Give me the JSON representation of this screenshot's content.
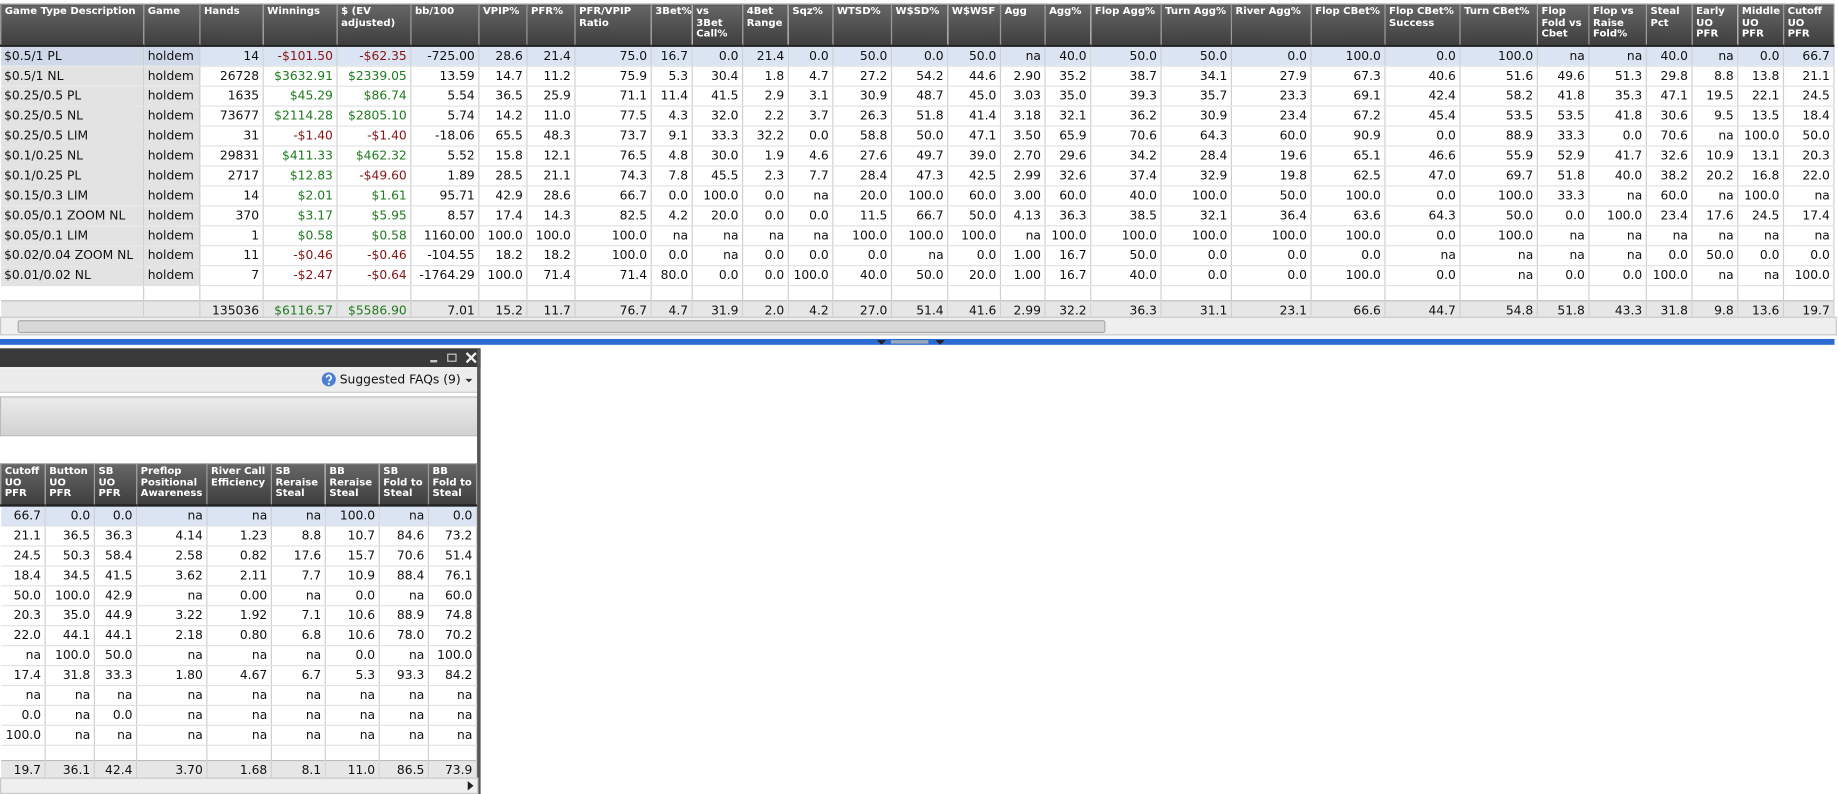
{
  "top_table": {
    "headers": [
      "Game Type Description",
      "Game",
      "Hands",
      "Winnings",
      "$ (EV adjusted)",
      "bb/100",
      "VPIP%",
      "PFR%",
      "PFR/VPIP Ratio",
      "3Bet%",
      "vs 3Bet Call%",
      "4Bet Range",
      "Sqz%",
      "WTSD%",
      "W$SD%",
      "W$WSF",
      "Agg",
      "Agg%",
      "Flop Agg%",
      "Turn Agg%",
      "River Agg%",
      "Flop CBet%",
      "Flop CBet% Success",
      "Turn CBet%",
      "Flop Fold vs Cbet",
      "Flop vs Raise Fold%",
      "Steal Pct",
      "Early UO PFR",
      "Middle UO PFR",
      "Cutoff UO PFR"
    ],
    "rows": [
      [
        "$0.5/1 PL",
        "holdem",
        "14",
        "-$101.50",
        "-$62.35",
        "-725.00",
        "28.6",
        "21.4",
        "75.0",
        "16.7",
        "0.0",
        "21.4",
        "0.0",
        "50.0",
        "0.0",
        "50.0",
        "na",
        "40.0",
        "50.0",
        "50.0",
        "0.0",
        "100.0",
        "0.0",
        "100.0",
        "na",
        "na",
        "40.0",
        "na",
        "0.0",
        "66.7"
      ],
      [
        "$0.5/1 NL",
        "holdem",
        "26728",
        "$3632.91",
        "$2339.05",
        "13.59",
        "14.7",
        "11.2",
        "75.9",
        "5.3",
        "30.4",
        "1.8",
        "4.7",
        "27.2",
        "54.2",
        "44.6",
        "2.90",
        "35.2",
        "38.7",
        "34.1",
        "27.9",
        "67.3",
        "40.6",
        "51.6",
        "49.6",
        "51.3",
        "29.8",
        "8.8",
        "13.8",
        "21.1"
      ],
      [
        "$0.25/0.5 PL",
        "holdem",
        "1635",
        "$45.29",
        "$86.74",
        "5.54",
        "36.5",
        "25.9",
        "71.1",
        "11.4",
        "41.5",
        "2.9",
        "3.1",
        "30.9",
        "48.7",
        "45.0",
        "3.03",
        "35.0",
        "39.3",
        "35.7",
        "23.3",
        "69.1",
        "42.4",
        "58.2",
        "41.8",
        "35.3",
        "47.1",
        "19.5",
        "22.1",
        "24.5"
      ],
      [
        "$0.25/0.5 NL",
        "holdem",
        "73677",
        "$2114.28",
        "$2805.10",
        "5.74",
        "14.2",
        "11.0",
        "77.5",
        "4.3",
        "32.0",
        "2.2",
        "3.7",
        "26.3",
        "51.8",
        "41.4",
        "3.18",
        "32.1",
        "36.2",
        "30.9",
        "23.4",
        "67.2",
        "45.4",
        "53.5",
        "53.5",
        "41.8",
        "30.6",
        "9.5",
        "13.5",
        "18.4"
      ],
      [
        "$0.25/0.5 LIM",
        "holdem",
        "31",
        "-$1.40",
        "-$1.40",
        "-18.06",
        "65.5",
        "48.3",
        "73.7",
        "9.1",
        "33.3",
        "32.2",
        "0.0",
        "58.8",
        "50.0",
        "47.1",
        "3.50",
        "65.9",
        "70.6",
        "64.3",
        "60.0",
        "90.9",
        "0.0",
        "88.9",
        "33.3",
        "0.0",
        "70.6",
        "na",
        "100.0",
        "50.0"
      ],
      [
        "$0.1/0.25 NL",
        "holdem",
        "29831",
        "$411.33",
        "$462.32",
        "5.52",
        "15.8",
        "12.1",
        "76.5",
        "4.8",
        "30.0",
        "1.9",
        "4.6",
        "27.6",
        "49.7",
        "39.0",
        "2.70",
        "29.6",
        "34.2",
        "28.4",
        "19.6",
        "65.1",
        "46.6",
        "55.9",
        "52.9",
        "41.7",
        "32.6",
        "10.9",
        "13.1",
        "20.3"
      ],
      [
        "$0.1/0.25 PL",
        "holdem",
        "2717",
        "$12.83",
        "-$49.60",
        "1.89",
        "28.5",
        "21.1",
        "74.3",
        "7.8",
        "45.5",
        "2.3",
        "7.7",
        "28.4",
        "47.3",
        "42.5",
        "2.99",
        "32.6",
        "37.4",
        "32.9",
        "19.8",
        "62.5",
        "47.0",
        "69.7",
        "51.8",
        "40.0",
        "38.2",
        "20.2",
        "16.8",
        "22.0"
      ],
      [
        "$0.15/0.3 LIM",
        "holdem",
        "14",
        "$2.01",
        "$1.61",
        "95.71",
        "42.9",
        "28.6",
        "66.7",
        "0.0",
        "100.0",
        "0.0",
        "na",
        "20.0",
        "100.0",
        "60.0",
        "3.00",
        "60.0",
        "40.0",
        "100.0",
        "50.0",
        "100.0",
        "0.0",
        "100.0",
        "33.3",
        "na",
        "60.0",
        "na",
        "100.0",
        "na"
      ],
      [
        "$0.05/0.1 ZOOM NL",
        "holdem",
        "370",
        "$3.17",
        "$5.95",
        "8.57",
        "17.4",
        "14.3",
        "82.5",
        "4.2",
        "20.0",
        "0.0",
        "0.0",
        "11.5",
        "66.7",
        "50.0",
        "4.13",
        "36.3",
        "38.5",
        "32.1",
        "36.4",
        "63.6",
        "64.3",
        "50.0",
        "0.0",
        "100.0",
        "23.4",
        "17.6",
        "24.5",
        "17.4"
      ],
      [
        "$0.05/0.1 LIM",
        "holdem",
        "1",
        "$0.58",
        "$0.58",
        "1160.00",
        "100.0",
        "100.0",
        "100.0",
        "na",
        "na",
        "na",
        "na",
        "100.0",
        "100.0",
        "100.0",
        "na",
        "100.0",
        "100.0",
        "100.0",
        "100.0",
        "100.0",
        "0.0",
        "100.0",
        "na",
        "na",
        "na",
        "na",
        "na",
        "na"
      ],
      [
        "$0.02/0.04 ZOOM NL",
        "holdem",
        "11",
        "-$0.46",
        "-$0.46",
        "-104.55",
        "18.2",
        "18.2",
        "100.0",
        "0.0",
        "na",
        "0.0",
        "0.0",
        "0.0",
        "na",
        "0.0",
        "1.00",
        "16.7",
        "50.0",
        "0.0",
        "0.0",
        "0.0",
        "na",
        "na",
        "na",
        "na",
        "0.0",
        "50.0",
        "0.0",
        "0.0"
      ],
      [
        "$0.01/0.02 NL",
        "holdem",
        "7",
        "-$2.47",
        "-$0.64",
        "-1764.29",
        "100.0",
        "71.4",
        "71.4",
        "80.0",
        "0.0",
        "0.0",
        "100.0",
        "40.0",
        "50.0",
        "20.0",
        "1.00",
        "16.7",
        "40.0",
        "0.0",
        "0.0",
        "100.0",
        "0.0",
        "na",
        "0.0",
        "0.0",
        "100.0",
        "na",
        "na",
        "100.0"
      ]
    ],
    "totals": [
      "135036",
      "$6116.57",
      "$5586.90",
      "7.01",
      "15.2",
      "11.7",
      "76.7",
      "4.7",
      "31.9",
      "2.0",
      "4.2",
      "27.0",
      "51.4",
      "41.6",
      "2.99",
      "32.2",
      "36.3",
      "31.1",
      "23.1",
      "66.6",
      "44.7",
      "54.8",
      "51.8",
      "43.3",
      "31.8",
      "9.8",
      "13.6",
      "19.7"
    ]
  },
  "faq_button": "Suggested FAQs (9)",
  "bottom_table": {
    "headers": [
      "Cutoff UO PFR",
      "Button UO PFR",
      "SB UO PFR",
      "Preflop Positional Awareness",
      "River Call Efficiency",
      "SB Reraise Steal",
      "BB Reraise Steal",
      "SB Fold to Steal",
      "BB Fold to Steal"
    ],
    "rows": [
      [
        "66.7",
        "0.0",
        "0.0",
        "na",
        "na",
        "na",
        "100.0",
        "na",
        "0.0"
      ],
      [
        "21.1",
        "36.5",
        "36.3",
        "4.14",
        "1.23",
        "8.8",
        "10.7",
        "84.6",
        "73.2"
      ],
      [
        "24.5",
        "50.3",
        "58.4",
        "2.58",
        "0.82",
        "17.6",
        "15.7",
        "70.6",
        "51.4"
      ],
      [
        "18.4",
        "34.5",
        "41.5",
        "3.62",
        "2.11",
        "7.7",
        "10.9",
        "88.4",
        "76.1"
      ],
      [
        "50.0",
        "100.0",
        "42.9",
        "na",
        "0.00",
        "na",
        "0.0",
        "na",
        "60.0"
      ],
      [
        "20.3",
        "35.0",
        "44.9",
        "3.22",
        "1.92",
        "7.1",
        "10.6",
        "88.9",
        "74.8"
      ],
      [
        "22.0",
        "44.1",
        "44.1",
        "2.18",
        "0.80",
        "6.8",
        "10.6",
        "78.0",
        "70.2"
      ],
      [
        "na",
        "100.0",
        "50.0",
        "na",
        "na",
        "na",
        "0.0",
        "na",
        "100.0"
      ],
      [
        "17.4",
        "31.8",
        "33.3",
        "1.80",
        "4.67",
        "6.7",
        "5.3",
        "93.3",
        "84.2"
      ],
      [
        "na",
        "na",
        "na",
        "na",
        "na",
        "na",
        "na",
        "na",
        "na"
      ],
      [
        "0.0",
        "na",
        "0.0",
        "na",
        "na",
        "na",
        "na",
        "na",
        "na"
      ],
      [
        "100.0",
        "na",
        "na",
        "na",
        "na",
        "na",
        "na",
        "na",
        "na"
      ]
    ],
    "totals": [
      "19.7",
      "36.1",
      "42.4",
      "3.70",
      "1.68",
      "8.1",
      "11.0",
      "86.5",
      "73.9"
    ]
  }
}
